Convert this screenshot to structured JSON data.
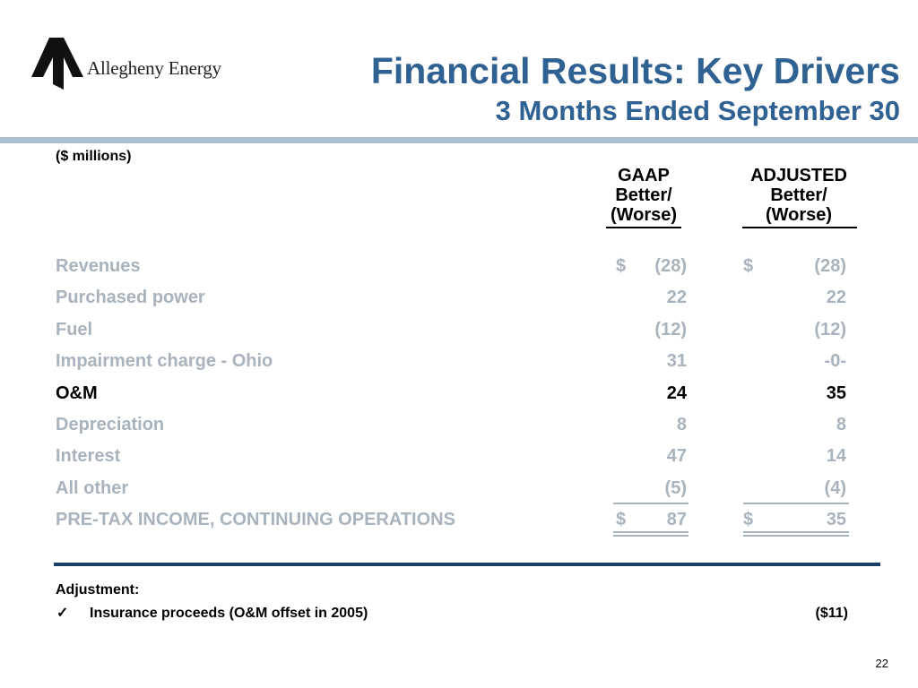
{
  "logo": {
    "company": "Allegheny Energy"
  },
  "header": {
    "title": "Financial Results: Key Drivers",
    "subtitle": "3 Months Ended September 30"
  },
  "units": "($ millions)",
  "columns": {
    "gaap": [
      "GAAP",
      "Better/",
      "(Worse)"
    ],
    "adjusted": [
      "ADJUSTED",
      "Better/",
      "(Worse)"
    ]
  },
  "rows": [
    {
      "label": "Revenues",
      "gaap_currency": "$",
      "gaap": "(28)",
      "adj_currency": "$",
      "adjusted": "(28)"
    },
    {
      "label": "Purchased power",
      "gaap": "22",
      "adjusted": "22"
    },
    {
      "label": "Fuel",
      "gaap": "(12)",
      "adjusted": "(12)"
    },
    {
      "label": "Impairment charge - Ohio",
      "gaap": "31",
      "adjusted": "-0-"
    },
    {
      "label": "O&M",
      "gaap": "24",
      "adjusted": "35"
    },
    {
      "label": "Depreciation",
      "gaap": "8",
      "adjusted": "8"
    },
    {
      "label": "Interest",
      "gaap": "47",
      "adjusted": "14"
    },
    {
      "label": "All other",
      "gaap": "(5)",
      "adjusted": "(4)"
    },
    {
      "label": "PRE-TAX INCOME, CONTINUING OPERATIONS",
      "gaap_currency": "$",
      "gaap": "87",
      "adj_currency": "$",
      "adjusted": "35"
    }
  ],
  "adjustment": {
    "title": "Adjustment:",
    "icon": "checkmark-icon",
    "item": "Insurance proceeds (O&M offset in 2005)",
    "value": "($11)"
  },
  "page_number": "22",
  "colors": {
    "title": "#2f6192",
    "band": "#a9bfd2",
    "muted_text": "#a9b3bd",
    "divider": "#173f66"
  }
}
